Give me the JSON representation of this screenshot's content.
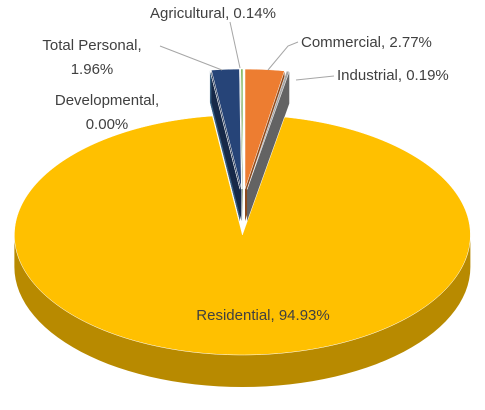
{
  "chart_data": {
    "type": "pie3d",
    "categories": [
      "Commercial",
      "Industrial",
      "Residential",
      "Developmental",
      "Total Personal",
      "Agricultural"
    ],
    "values": [
      2.77,
      0.19,
      94.93,
      0.0,
      1.96,
      0.14
    ],
    "value_labels": [
      "2.77%",
      "0.19%",
      "94.93%",
      "0.00%",
      "1.96%",
      "0.14%"
    ],
    "colors": [
      "#ed7d31",
      "#a5a5a5",
      "#ffc000",
      "#5b9bd5",
      "#264478",
      "#70ad47"
    ]
  }
}
